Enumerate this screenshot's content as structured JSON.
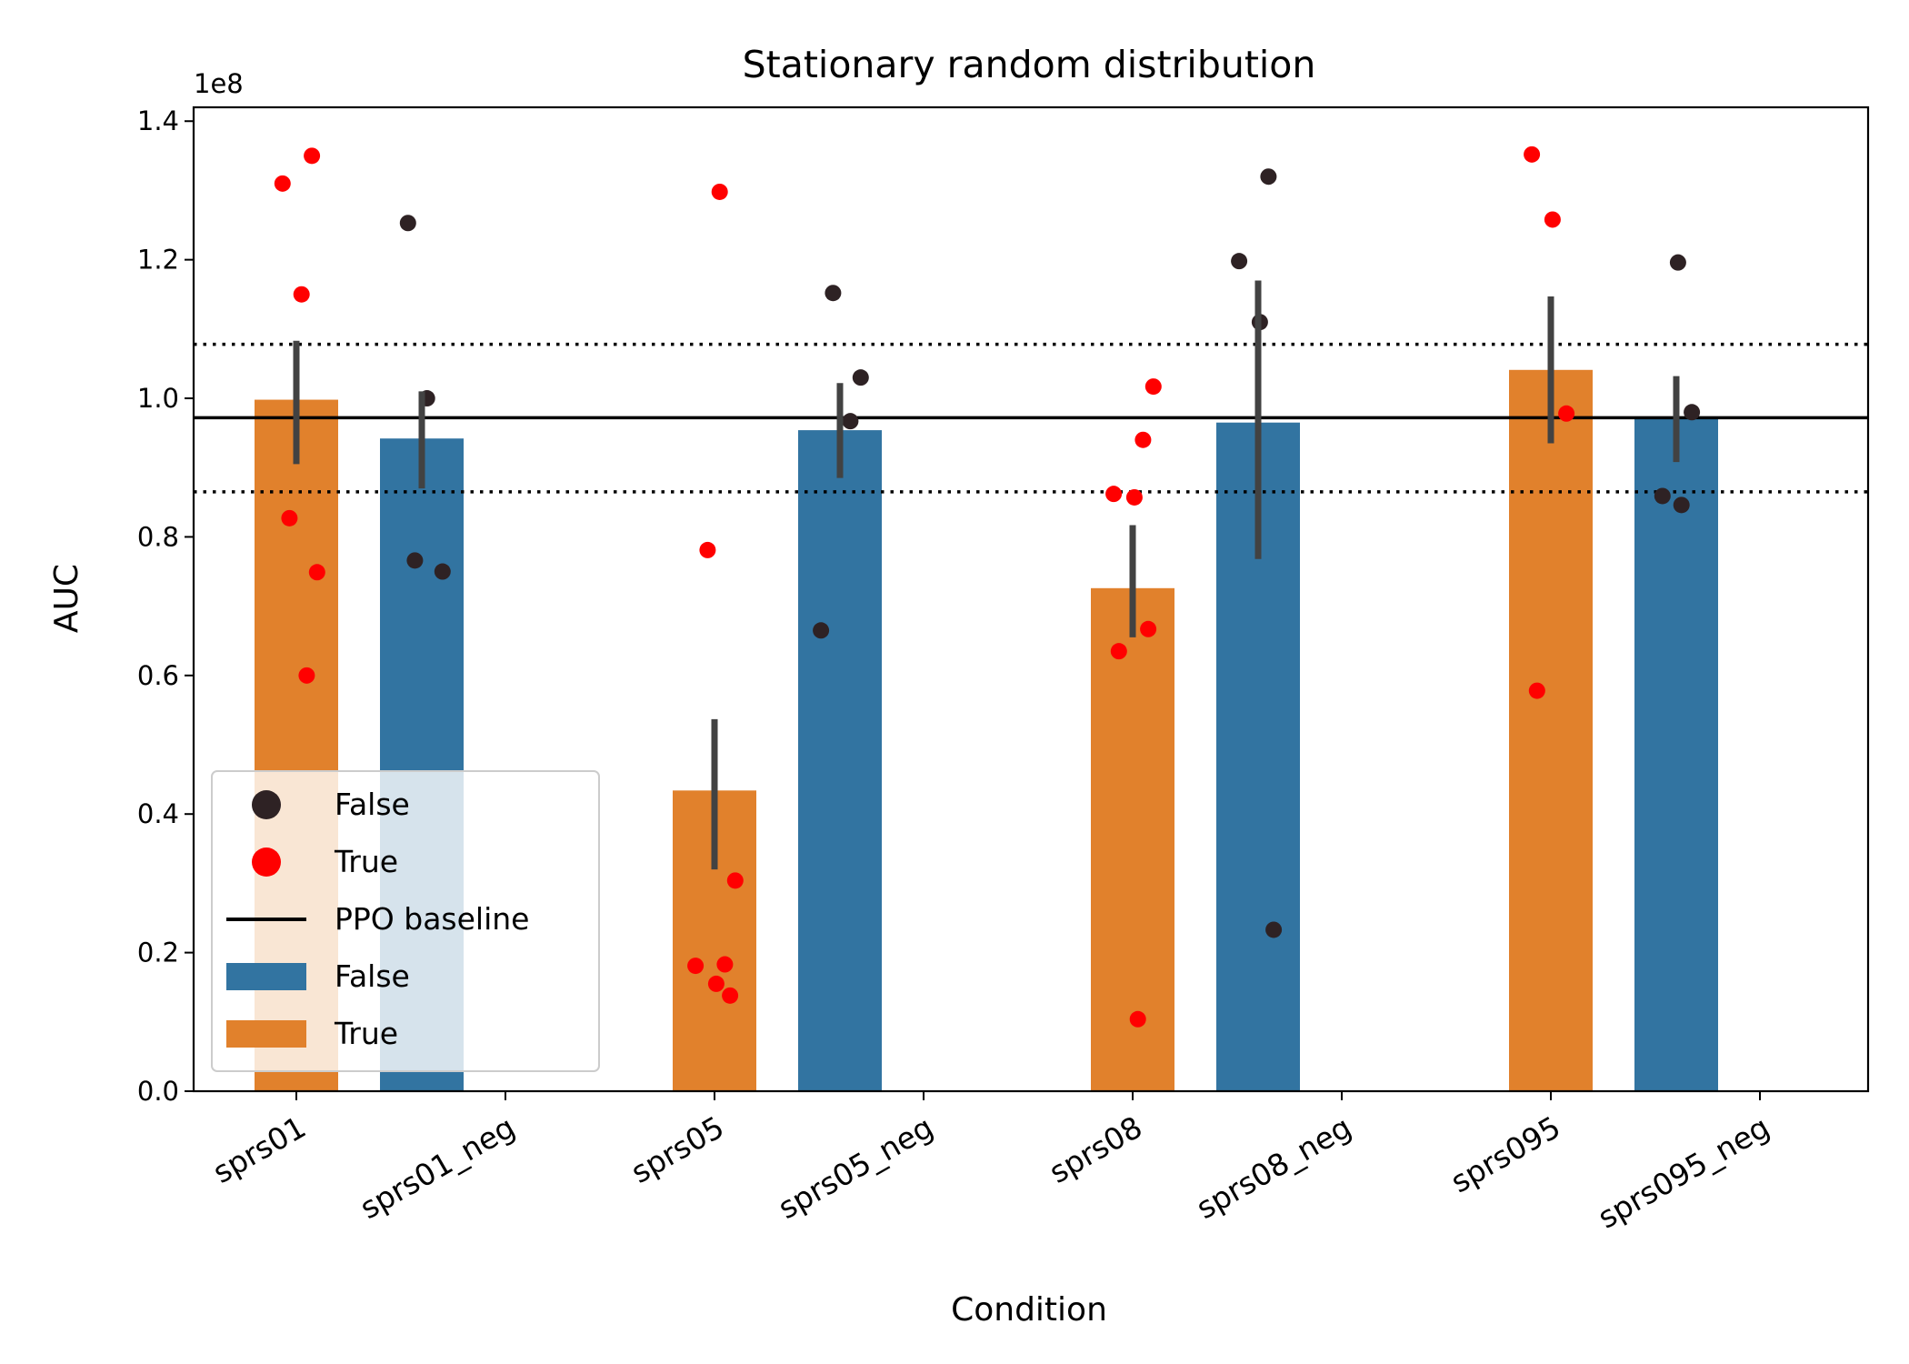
{
  "chart_data": {
    "type": "bar",
    "title": "Stationary random distribution",
    "xlabel": "Condition",
    "ylabel": "AUC",
    "y_offset_label": "1e8",
    "ylim": [
      0,
      1.42
    ],
    "yticks": [
      0.0,
      0.2,
      0.4,
      0.6,
      0.8,
      1.0,
      1.2,
      1.4
    ],
    "ytick_labels": [
      "0.0",
      "0.2",
      "0.4",
      "0.6",
      "0.8",
      "1.0",
      "1.2",
      "1.4"
    ],
    "categories": [
      "sprs01",
      "sprs01_neg",
      "sprs05",
      "sprs05_neg",
      "sprs08",
      "sprs08_neg",
      "sprs095",
      "sprs095_neg"
    ],
    "hue_levels": [
      "False",
      "True"
    ],
    "colors": {
      "False": "#3274a1",
      "True": "#e1812c",
      "points_False": "#2e2224",
      "points_True": "#ff0000",
      "error_bar": "#424242",
      "baseline": "#000000"
    },
    "bars": [
      {
        "category": "sprs01",
        "hue": "True",
        "value": 0.998,
        "ci": [
          0.905,
          1.083
        ]
      },
      {
        "category": "sprs01_neg",
        "hue": "False",
        "value": 0.942,
        "ci": [
          0.87,
          1.01
        ]
      },
      {
        "category": "sprs05",
        "hue": "True",
        "value": 0.434,
        "ci": [
          0.32,
          0.537
        ]
      },
      {
        "category": "sprs05_neg",
        "hue": "False",
        "value": 0.954,
        "ci": [
          0.885,
          1.022
        ]
      },
      {
        "category": "sprs08",
        "hue": "True",
        "value": 0.726,
        "ci": [
          0.655,
          0.817
        ]
      },
      {
        "category": "sprs08_neg",
        "hue": "False",
        "value": 0.965,
        "ci": [
          0.768,
          1.17
        ]
      },
      {
        "category": "sprs095",
        "hue": "True",
        "value": 1.041,
        "ci": [
          0.935,
          1.147
        ]
      },
      {
        "category": "sprs095_neg",
        "hue": "False",
        "value": 0.972,
        "ci": [
          0.908,
          1.032
        ]
      }
    ],
    "points": [
      {
        "category": "sprs01",
        "hue": "True",
        "values": [
          1.35,
          1.31,
          1.15,
          0.827,
          0.749,
          0.6
        ]
      },
      {
        "category": "sprs01_neg",
        "hue": "False",
        "values": [
          1.253,
          1.0,
          0.766,
          0.75
        ]
      },
      {
        "category": "sprs05",
        "hue": "True",
        "values": [
          1.298,
          0.781,
          0.304,
          0.183,
          0.181,
          0.155,
          0.138
        ]
      },
      {
        "category": "sprs05_neg",
        "hue": "False",
        "values": [
          1.152,
          1.03,
          0.967,
          0.665
        ]
      },
      {
        "category": "sprs08",
        "hue": "True",
        "values": [
          1.017,
          0.94,
          0.862,
          0.857,
          0.667,
          0.635,
          0.104
        ]
      },
      {
        "category": "sprs08_neg",
        "hue": "False",
        "values": [
          1.32,
          1.198,
          1.11,
          0.233
        ]
      },
      {
        "category": "sprs095",
        "hue": "True",
        "values": [
          1.352,
          1.258,
          0.978,
          0.578
        ]
      },
      {
        "category": "sprs095_neg",
        "hue": "False",
        "values": [
          1.196,
          0.98,
          0.859,
          0.846
        ]
      }
    ],
    "baseline": {
      "name": "PPO baseline",
      "value": 0.972,
      "band": [
        0.865,
        1.078
      ]
    },
    "legend": {
      "placement": "lower-left",
      "entries": [
        {
          "label": "False",
          "kind": "point",
          "hue": "False"
        },
        {
          "label": "True",
          "kind": "point",
          "hue": "True"
        },
        {
          "label": "PPO baseline",
          "kind": "line"
        },
        {
          "label": "False",
          "kind": "patch",
          "hue": "False"
        },
        {
          "label": "True",
          "kind": "patch",
          "hue": "True"
        }
      ]
    }
  }
}
